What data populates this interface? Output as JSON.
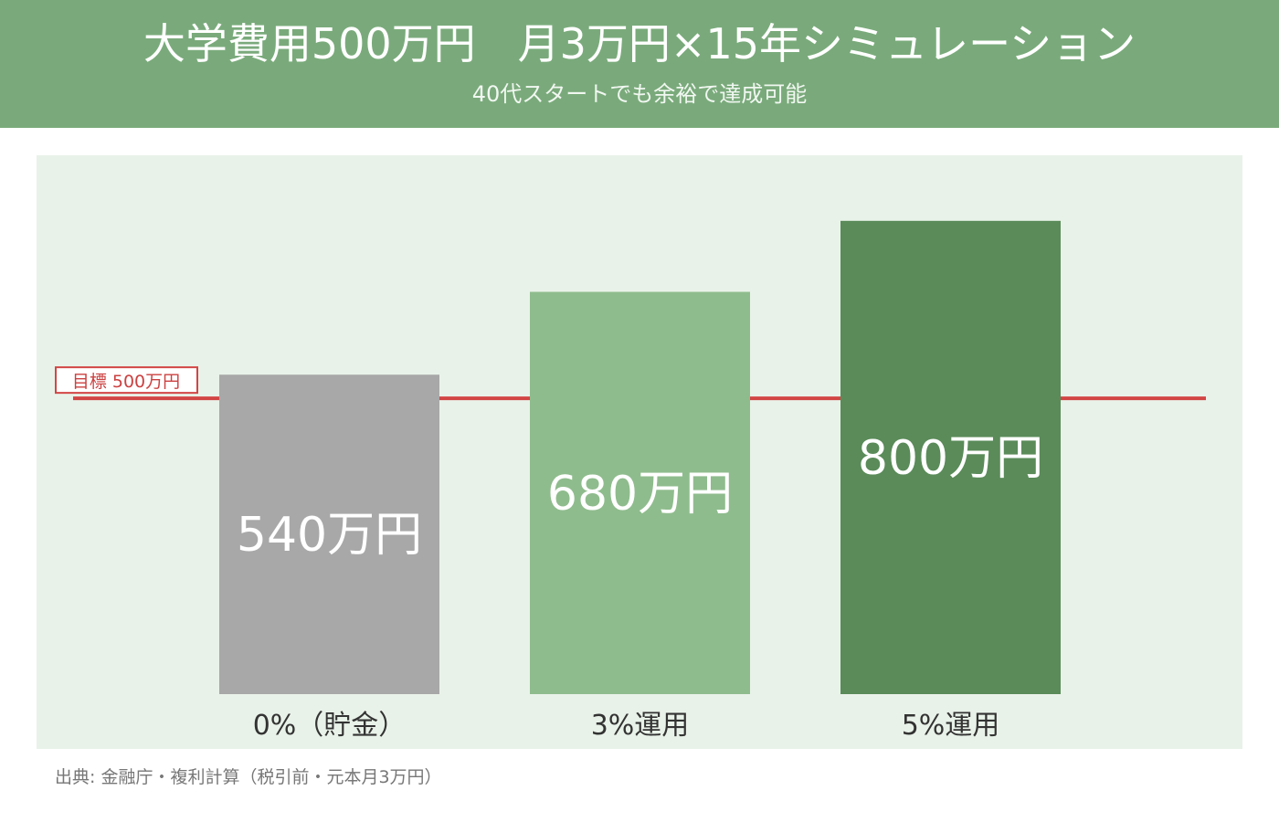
{
  "header": {
    "title": "大学費用500万円　月3万円×15年シミュレーション",
    "subtitle": "40代スタートでも余裕で達成可能"
  },
  "chart_data": {
    "type": "bar",
    "categories": [
      "0%（貯金）",
      "3%運用",
      "5%運用"
    ],
    "values": [
      540,
      680,
      800
    ],
    "value_labels": [
      "540万円",
      "680万円",
      "800万円"
    ],
    "unit": "万円",
    "target": {
      "label": "目標 500万円",
      "value": 500
    },
    "ylim": [
      0,
      880
    ],
    "grid": false,
    "colors": [
      "#a8a8a8",
      "#8fbc8d",
      "#5a8b59"
    ],
    "target_color": "#d24545"
  },
  "source": "出典: 金融庁・複利計算（税引前・元本月3万円）"
}
